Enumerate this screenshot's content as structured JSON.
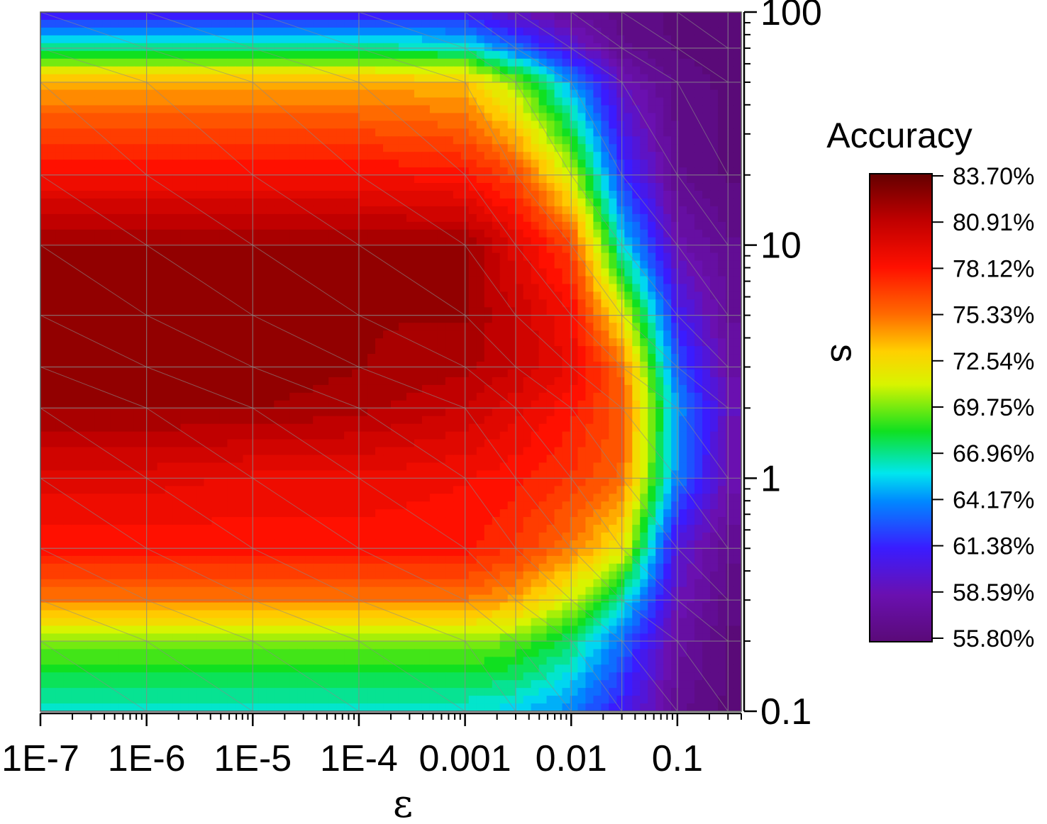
{
  "chart_data": {
    "type": "heatmap",
    "title": "",
    "xlabel": "ε",
    "ylabel": "s",
    "x_scale": "log",
    "y_scale": "log",
    "xlim": [
      1e-07,
      0.4
    ],
    "ylim": [
      0.1,
      100
    ],
    "x_ticks": [
      {
        "value": 1e-07,
        "label": "1E-7"
      },
      {
        "value": 1e-06,
        "label": "1E-6"
      },
      {
        "value": 1e-05,
        "label": "1E-5"
      },
      {
        "value": 0.0001,
        "label": "1E-4"
      },
      {
        "value": 0.001,
        "label": "0.001"
      },
      {
        "value": 0.01,
        "label": "0.01"
      },
      {
        "value": 0.1,
        "label": "0.1"
      }
    ],
    "y_ticks": [
      {
        "value": 0.1,
        "label": "0.1"
      },
      {
        "value": 1,
        "label": "1"
      },
      {
        "value": 10,
        "label": "10"
      },
      {
        "value": 100,
        "label": "100"
      }
    ],
    "x": [
      1e-07,
      1e-06,
      1e-05,
      0.0001,
      0.001,
      0.003,
      0.01,
      0.03,
      0.1,
      0.3
    ],
    "y": [
      0.1,
      0.2,
      0.3,
      0.5,
      1,
      2,
      3,
      5,
      10,
      20,
      50,
      70,
      100
    ],
    "z": [
      [
        66.0,
        66.0,
        66.0,
        66.0,
        66.0,
        65.5,
        64.0,
        61.0,
        57.0,
        56.0
      ],
      [
        70.0,
        70.0,
        70.0,
        70.0,
        70.0,
        69.5,
        67.5,
        63.5,
        58.0,
        56.0
      ],
      [
        75.0,
        75.0,
        75.0,
        75.0,
        75.0,
        74.0,
        71.0,
        66.5,
        59.0,
        56.5
      ],
      [
        78.0,
        78.0,
        78.0,
        78.0,
        78.0,
        77.0,
        75.0,
        72.0,
        60.0,
        57.0
      ],
      [
        79.5,
        79.5,
        79.0,
        79.0,
        78.5,
        78.0,
        77.0,
        75.5,
        64.0,
        58.5
      ],
      [
        82.0,
        82.0,
        82.0,
        81.5,
        80.5,
        79.5,
        78.0,
        76.0,
        64.5,
        59.0
      ],
      [
        82.5,
        82.5,
        82.5,
        82.0,
        81.5,
        80.5,
        79.0,
        75.5,
        63.0,
        58.0
      ],
      [
        82.5,
        82.5,
        82.5,
        82.0,
        82.0,
        80.5,
        78.5,
        72.0,
        61.0,
        57.5
      ],
      [
        82.0,
        82.0,
        82.0,
        82.0,
        82.0,
        79.5,
        76.5,
        66.0,
        58.5,
        57.0
      ],
      [
        78.5,
        78.5,
        78.5,
        78.5,
        78.0,
        76.5,
        71.0,
        62.0,
        57.0,
        56.0
      ],
      [
        74.0,
        74.0,
        74.0,
        74.0,
        73.5,
        70.0,
        64.5,
        59.0,
        56.5,
        56.0
      ],
      [
        67.0,
        67.0,
        67.0,
        67.0,
        66.5,
        63.5,
        60.0,
        57.0,
        56.0,
        56.0
      ],
      [
        61.0,
        61.0,
        61.0,
        61.0,
        60.5,
        59.0,
        57.5,
        56.5,
        56.0,
        56.0
      ]
    ],
    "colorbar": {
      "title": "Accuracy",
      "min": 55.8,
      "max": 83.7,
      "labels": [
        "83.70%",
        "80.91%",
        "78.12%",
        "75.33%",
        "72.54%",
        "69.75%",
        "66.96%",
        "64.17%",
        "61.38%",
        "58.59%",
        "55.80%"
      ]
    },
    "grid": true,
    "colorbar_placement": "right"
  }
}
